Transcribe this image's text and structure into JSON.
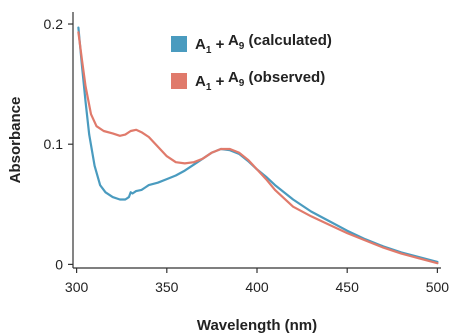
{
  "chart_data": {
    "type": "line",
    "xlabel": "Wavelength (nm)",
    "ylabel": "Absorbance",
    "xlim": [
      298,
      502
    ],
    "ylim": [
      -0.003,
      0.21
    ],
    "xticks": [
      "300",
      "350",
      "400",
      "450",
      "500"
    ],
    "yticks": [
      "0",
      "0.1",
      "0.2"
    ],
    "grid": false,
    "legend_position": "top-right",
    "series": [
      {
        "name": "A1 + A9 (calculated)",
        "name_base1": "A",
        "name_sub1": "1",
        "name_plus": " + ",
        "name_base2": "A",
        "name_sub2": "9",
        "name_suffix": " (calculated)",
        "color": "#4a9bbf",
        "x": [
          301,
          303,
          305,
          307,
          310,
          313,
          316,
          320,
          324,
          327,
          329,
          330,
          331,
          333,
          336,
          338,
          340,
          345,
          350,
          355,
          360,
          365,
          370,
          375,
          380,
          385,
          390,
          395,
          400,
          405,
          410,
          420,
          430,
          440,
          450,
          460,
          470,
          480,
          490,
          500
        ],
        "values": [
          0.197,
          0.165,
          0.135,
          0.108,
          0.082,
          0.066,
          0.06,
          0.056,
          0.054,
          0.054,
          0.056,
          0.06,
          0.059,
          0.061,
          0.062,
          0.064,
          0.066,
          0.068,
          0.071,
          0.074,
          0.078,
          0.083,
          0.088,
          0.093,
          0.096,
          0.095,
          0.092,
          0.086,
          0.079,
          0.073,
          0.066,
          0.054,
          0.044,
          0.036,
          0.028,
          0.021,
          0.015,
          0.01,
          0.006,
          0.002
        ]
      },
      {
        "name": "A1 + A9 (observed)",
        "name_base1": "A",
        "name_sub1": "1",
        "name_plus": " + ",
        "name_base2": "A",
        "name_sub2": "9",
        "name_suffix": " (observed)",
        "color": "#e07a6b",
        "x": [
          301,
          303,
          305,
          308,
          311,
          315,
          320,
          324,
          327,
          330,
          333,
          336,
          340,
          345,
          350,
          355,
          360,
          365,
          370,
          375,
          380,
          385,
          390,
          395,
          400,
          405,
          410,
          420,
          430,
          440,
          450,
          460,
          470,
          480,
          490,
          500
        ],
        "values": [
          0.193,
          0.17,
          0.148,
          0.125,
          0.115,
          0.111,
          0.109,
          0.107,
          0.108,
          0.111,
          0.112,
          0.11,
          0.106,
          0.098,
          0.09,
          0.085,
          0.084,
          0.085,
          0.088,
          0.093,
          0.096,
          0.096,
          0.093,
          0.087,
          0.079,
          0.071,
          0.062,
          0.048,
          0.04,
          0.033,
          0.026,
          0.02,
          0.014,
          0.009,
          0.005,
          0.001
        ]
      }
    ]
  }
}
